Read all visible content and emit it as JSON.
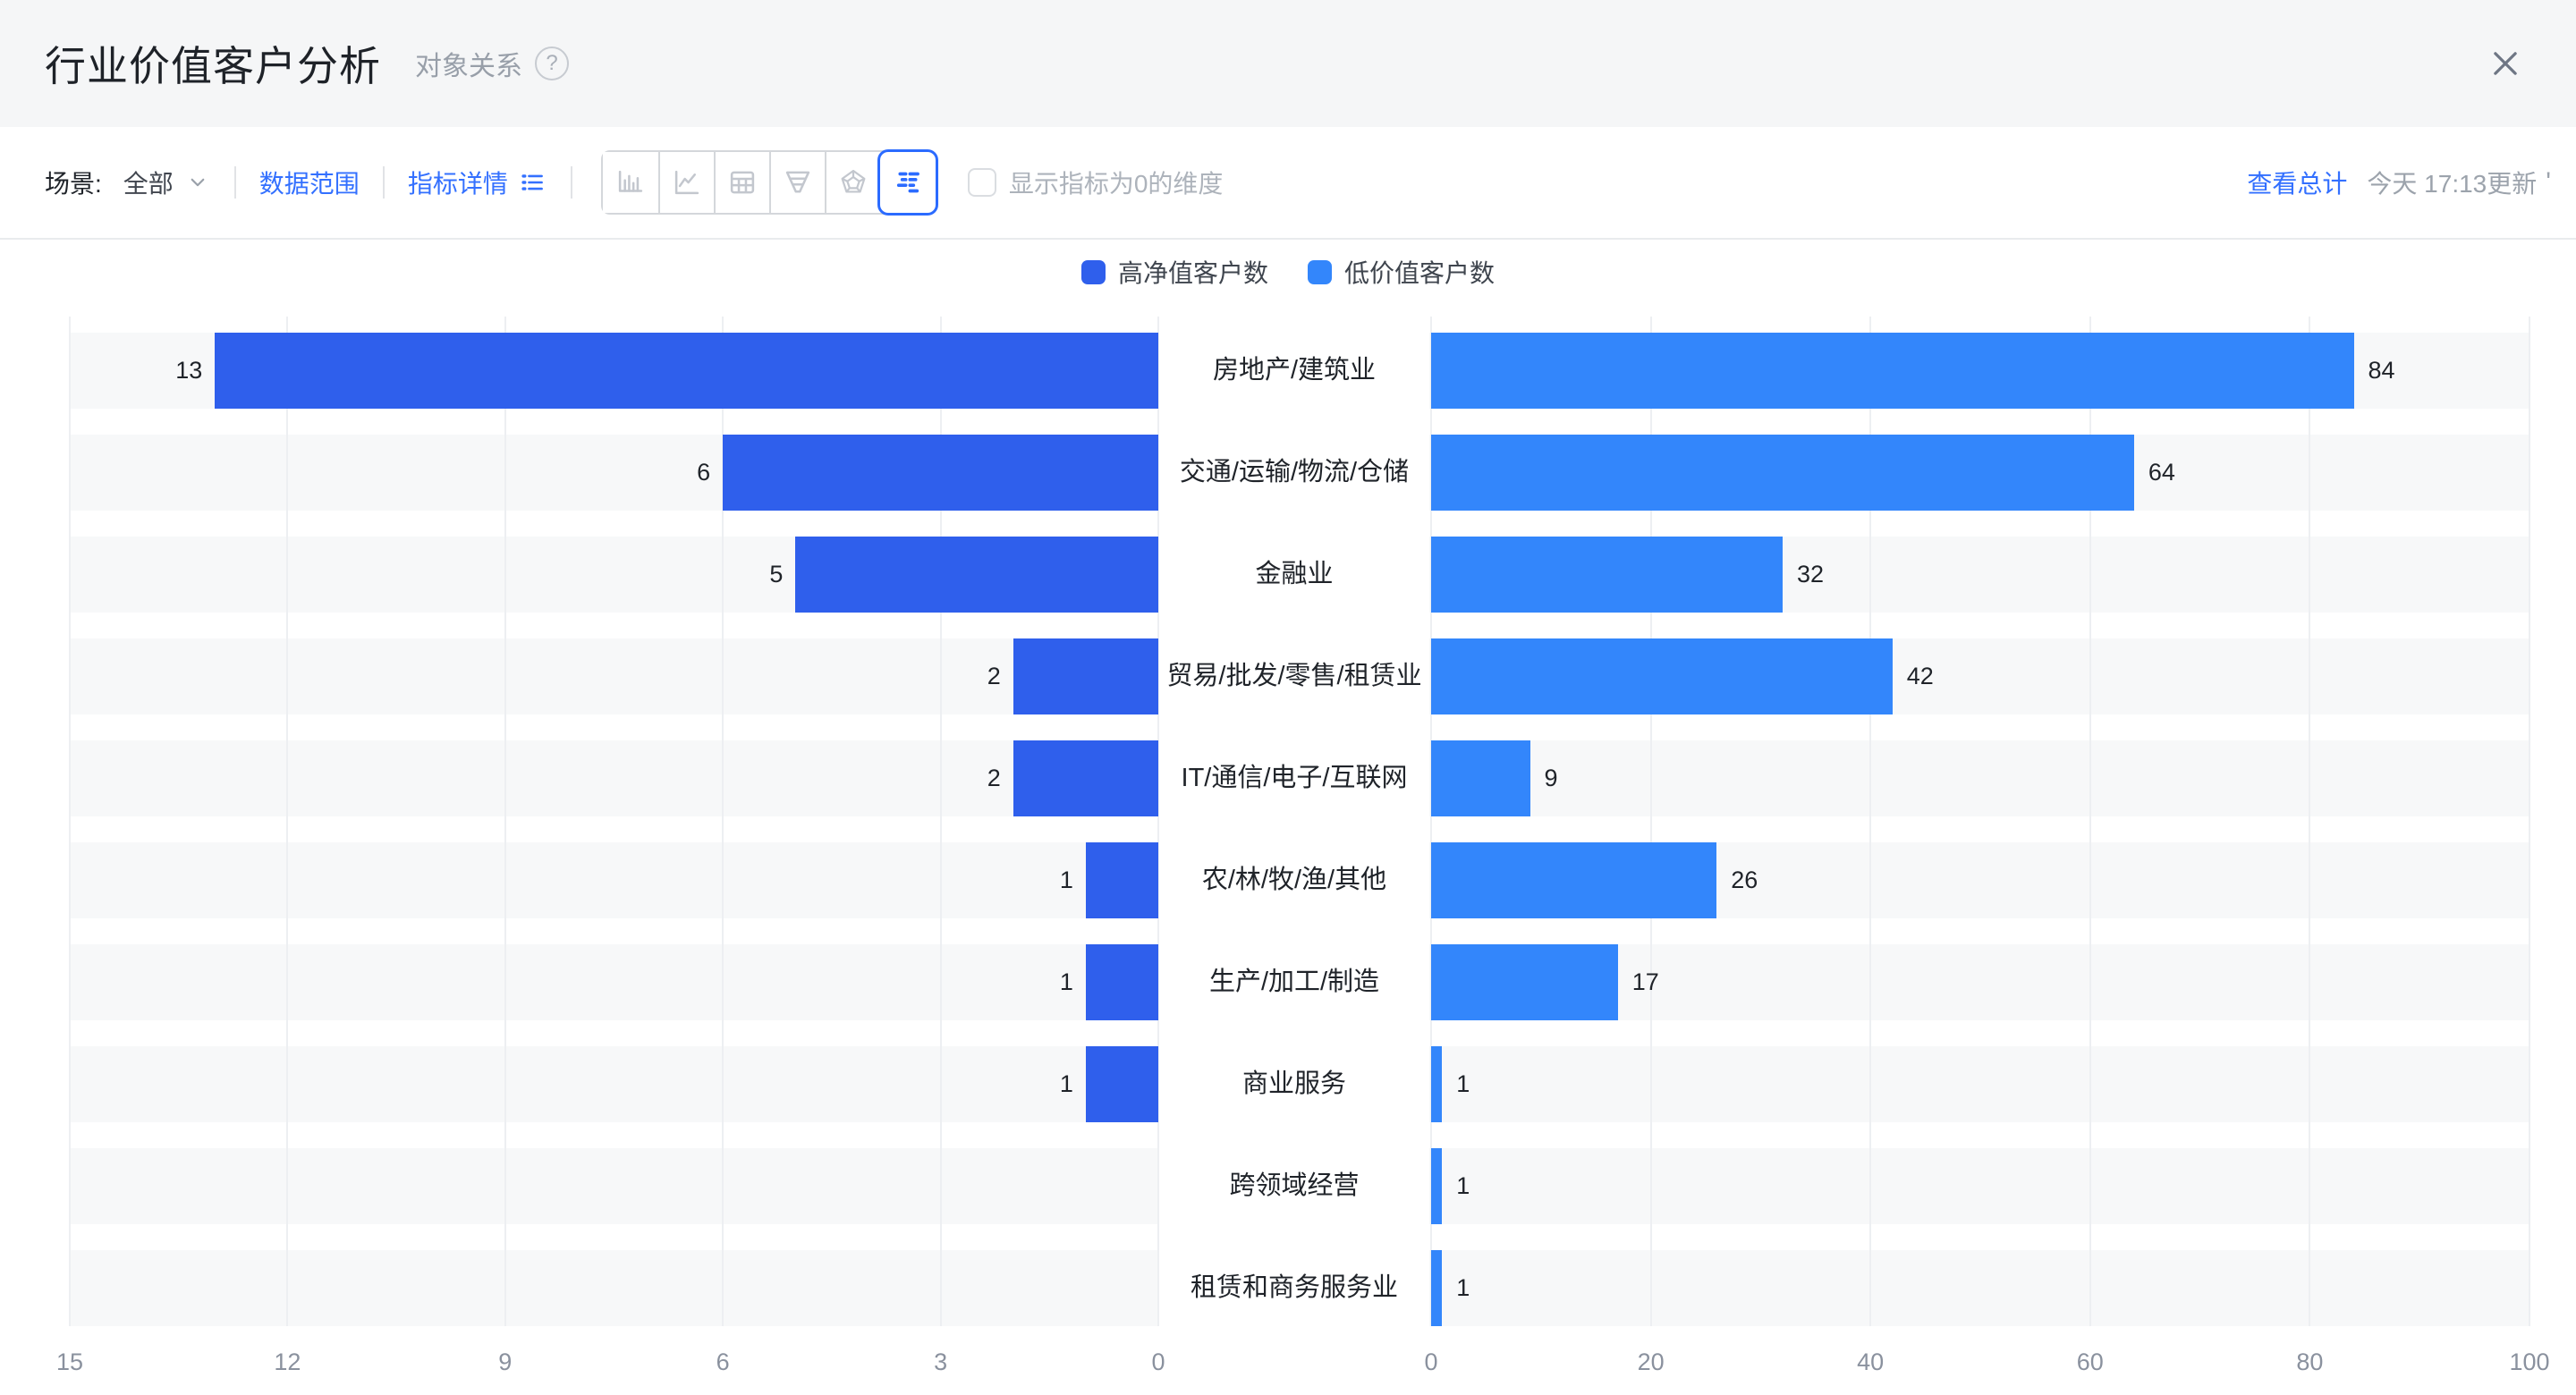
{
  "window": {
    "title": "行业价值客户分析",
    "subtitle": "对象关系",
    "help_icon": "?"
  },
  "toolbar": {
    "scene_label": "场景:",
    "scene_value": "全部",
    "data_range": "数据范围",
    "metric_detail": "指标详情",
    "zero_dim_checkbox_label": "显示指标为0的维度",
    "zero_dim_checked": false,
    "view_total": "查看总计",
    "updated": "今天 17:13更新",
    "updated_suffix": "'",
    "chart_type_icons": [
      "bar-chart-icon",
      "line-chart-icon",
      "table-icon",
      "funnel-icon",
      "radar-icon",
      "tornado-icon"
    ],
    "selected_chart_type": "tornado-icon"
  },
  "chart_data": {
    "type": "bar",
    "variant": "bidirectional-horizontal-tornado",
    "legend_position": "top-center",
    "grid": true,
    "categories": [
      "房地产/建筑业",
      "交通/运输/物流/仓储",
      "金融业",
      "贸易/批发/零售/租赁业",
      "IT/通信/电子/互联网",
      "农/林/牧/渔/其他",
      "生产/加工/制造",
      "商业服务",
      "跨领域经营",
      "租赁和商务服务业"
    ],
    "series": [
      {
        "name": "高净值客户数",
        "side": "left",
        "color": "#2F5FEC",
        "values": [
          13,
          6,
          5,
          2,
          2,
          1,
          1,
          1,
          0,
          0
        ],
        "axis_ticks": [
          15,
          12,
          9,
          6,
          3,
          0
        ],
        "axis_max": 15,
        "hide_zero_labels": true
      },
      {
        "name": "低价值客户数",
        "side": "right",
        "color": "#3386FB",
        "values": [
          84,
          64,
          32,
          42,
          9,
          26,
          17,
          1,
          1,
          1
        ],
        "axis_ticks": [
          0,
          20,
          40,
          60,
          80,
          100
        ],
        "axis_max": 100,
        "hide_zero_labels": true
      }
    ]
  },
  "colors": {
    "link_blue": "#3370FF",
    "selected_border": "#2B6BFF",
    "row_band": "#F7F8F9",
    "gridline": "#EDEFF2",
    "axis_text": "#8A919E",
    "text_primary": "#1F2329",
    "text_muted": "#9CA3AC",
    "titlebar_bg": "#F5F6F7"
  }
}
